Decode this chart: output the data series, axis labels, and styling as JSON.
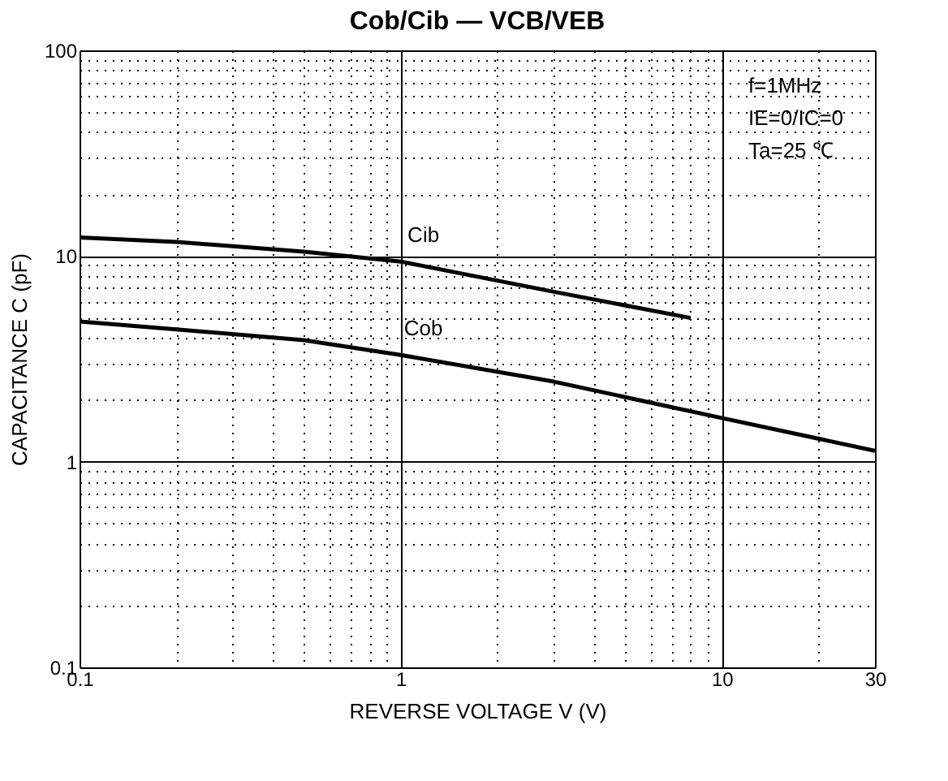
{
  "chart_data": {
    "type": "line",
    "title": "Cob/Cib — VCB/VEB",
    "xlabel": "REVERSE  VOLTAGE   V   (V)",
    "ylabel": "CAPACITANCE   C   (pF)",
    "x": [
      0.1,
      0.2,
      0.5,
      1,
      3,
      8
    ],
    "series": [
      {
        "name": "Cib",
        "color": "#000000",
        "values": [
          12.3,
          11.7,
          10.5,
          9.4,
          6.7,
          5.0
        ]
      },
      {
        "name": "Cob",
        "color": "#000000",
        "x": [
          0.1,
          0.2,
          0.5,
          1,
          3,
          10,
          30
        ],
        "values": [
          4.8,
          4.4,
          3.9,
          3.3,
          2.45,
          1.63,
          1.13
        ]
      }
    ],
    "annotations": [
      "f=1MHz",
      "IE=0/IC=0",
      "Ta=25 ℃"
    ],
    "log": "xy",
    "grid": true,
    "marker": "none",
    "line_style": "solid",
    "xlim": [
      0.1,
      30
    ],
    "ylim": [
      0.1,
      100
    ],
    "xticks": [
      0.1,
      {
        "value": 0.2,
        "label": null
      },
      {
        "value": 0.3,
        "label": null
      },
      {
        "value": 0.4,
        "label": null
      },
      {
        "value": 0.5,
        "label": null
      },
      {
        "value": 0.6,
        "label": null
      },
      {
        "value": 0.7,
        "label": null
      },
      {
        "value": 0.8,
        "label": null
      },
      {
        "value": 0.9,
        "label": null
      },
      1,
      {
        "value": 2,
        "label": null
      },
      {
        "value": 3,
        "label": null
      },
      {
        "value": 4,
        "label": null
      },
      {
        "value": 5,
        "label": null
      },
      {
        "value": 6,
        "label": null
      },
      {
        "value": 7,
        "label": null
      },
      {
        "value": 8,
        "label": null
      },
      {
        "value": 9,
        "label": null
      },
      10,
      {
        "value": 20,
        "label": null
      },
      30
    ],
    "yticks": [
      0.1,
      {
        "value": 0.2,
        "label": null
      },
      {
        "value": 0.3,
        "label": null
      },
      {
        "value": 0.4,
        "label": null
      },
      {
        "value": 0.5,
        "label": null
      },
      {
        "value": 0.6,
        "label": null
      },
      {
        "value": 0.7,
        "label": null
      },
      {
        "value": 0.8,
        "label": null
      },
      {
        "value": 0.9,
        "label": null
      },
      1,
      {
        "value": 2,
        "label": null
      },
      {
        "value": 3,
        "label": null
      },
      {
        "value": 4,
        "label": null
      },
      {
        "value": 5,
        "label": null
      },
      {
        "value": 6,
        "label": null
      },
      {
        "value": 7,
        "label": null
      },
      {
        "value": 8,
        "label": null
      },
      {
        "value": 9,
        "label": null
      },
      10,
      {
        "value": 20,
        "label": null
      },
      {
        "value": 30,
        "label": null
      },
      {
        "value": 40,
        "label": null
      },
      {
        "value": 50,
        "label": null
      },
      {
        "value": 60,
        "label": null
      },
      {
        "value": 70,
        "label": null
      },
      {
        "value": 80,
        "label": null
      },
      {
        "value": 90,
        "label": null
      },
      100
    ]
  }
}
